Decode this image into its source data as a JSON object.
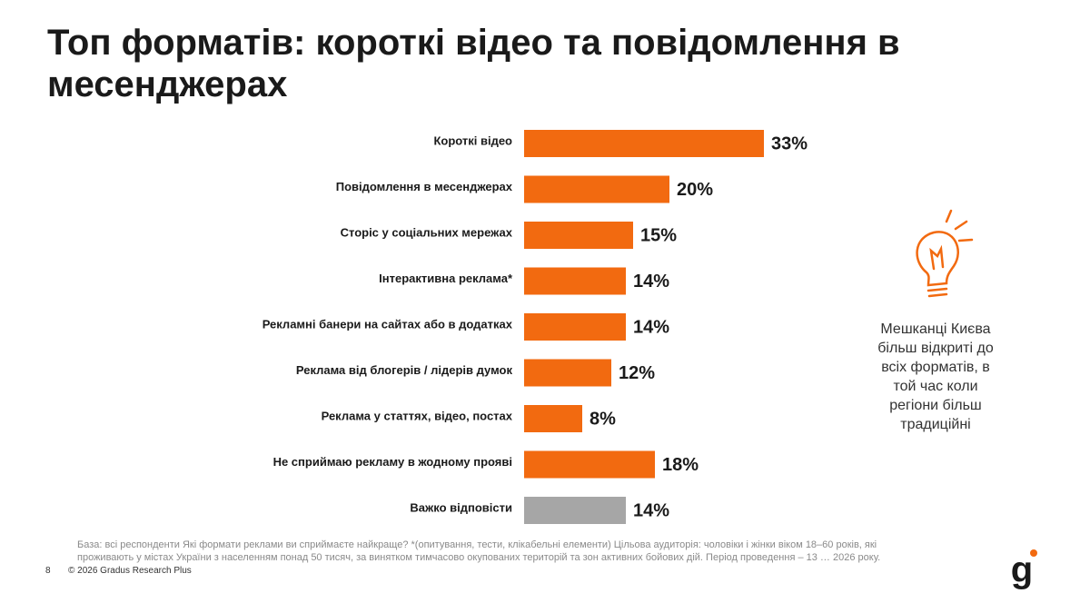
{
  "chart_data": {
    "type": "bar",
    "orientation": "horizontal",
    "title": "Топ форматів: короткі відео та повідомлення в месенджерах",
    "categories": [
      "Короткі відео",
      "Повідомлення в месенджерах",
      "Сторіс у соціальних мережах",
      "Інтерактивна реклама*",
      "Рекламні банери на сайтах або в додатках",
      "Реклама від блогерів / лідерів думок",
      "Реклама у статтях, відео, постах",
      "Не сприймаю рекламу в жодному прояві",
      "Важко відповісти"
    ],
    "values": [
      33,
      20,
      15,
      14,
      14,
      12,
      8,
      18,
      14
    ],
    "value_labels": [
      "33%",
      "20%",
      "15%",
      "14%",
      "14%",
      "12%",
      "8%",
      "18%",
      "14%"
    ],
    "colors": [
      "#f26a10",
      "#f26a10",
      "#f26a10",
      "#f26a10",
      "#f26a10",
      "#f26a10",
      "#f26a10",
      "#f26a10",
      "#a6a6a6"
    ]
  },
  "note": [
    "Мешканці Києва",
    "більш відкриті до",
    "всіх форматів, в",
    "той час коли",
    "регіони більш",
    "традиційні"
  ],
  "footnote": "База: всі респонденти Які формати реклами ви сприймаєте найкраще? *(опитування, тести, клікабельні елементи)   Цільова аудиторія: чоловіки і жінки віком 18–60 років, які проживають у містах України з населенням понад 50 тисяч, за винятком тимчасово окупованих територій та зон активних бойових дій. Період проведення – 13 … 2026 року.",
  "page_number": "8",
  "copyright": "© 2026 Gradus Research Plus",
  "logo": "g"
}
